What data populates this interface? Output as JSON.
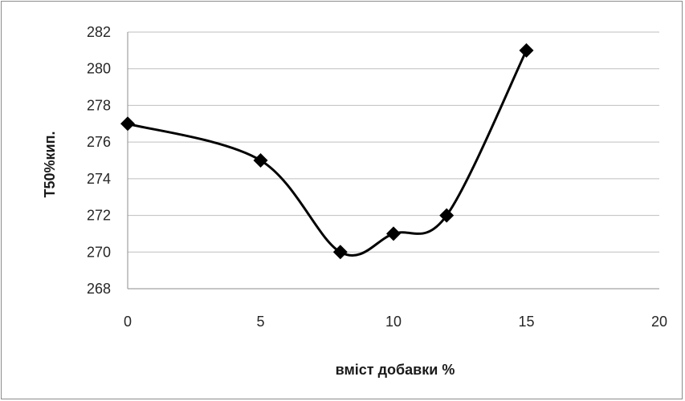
{
  "chart_data": {
    "type": "scatter",
    "title": "",
    "xlabel": "вміст добавки %",
    "ylabel": "T50%кип.",
    "xlim": [
      0,
      20
    ],
    "ylim": [
      268,
      282
    ],
    "xticks": [
      "0",
      "5",
      "10",
      "15",
      "20"
    ],
    "yticks": [
      "268",
      "270",
      "272",
      "274",
      "276",
      "278",
      "280",
      "282"
    ],
    "grid": "horizontal",
    "line": "smooth",
    "marker": "diamond",
    "legend": "none",
    "colors": {
      "series": "#000000",
      "grid": "#bfbfbf",
      "axis": "#8c8c8c"
    },
    "series": [
      {
        "x": [
          0,
          5,
          8,
          10,
          12,
          15
        ],
        "y": [
          277,
          275,
          270,
          271,
          272,
          281
        ]
      }
    ]
  }
}
